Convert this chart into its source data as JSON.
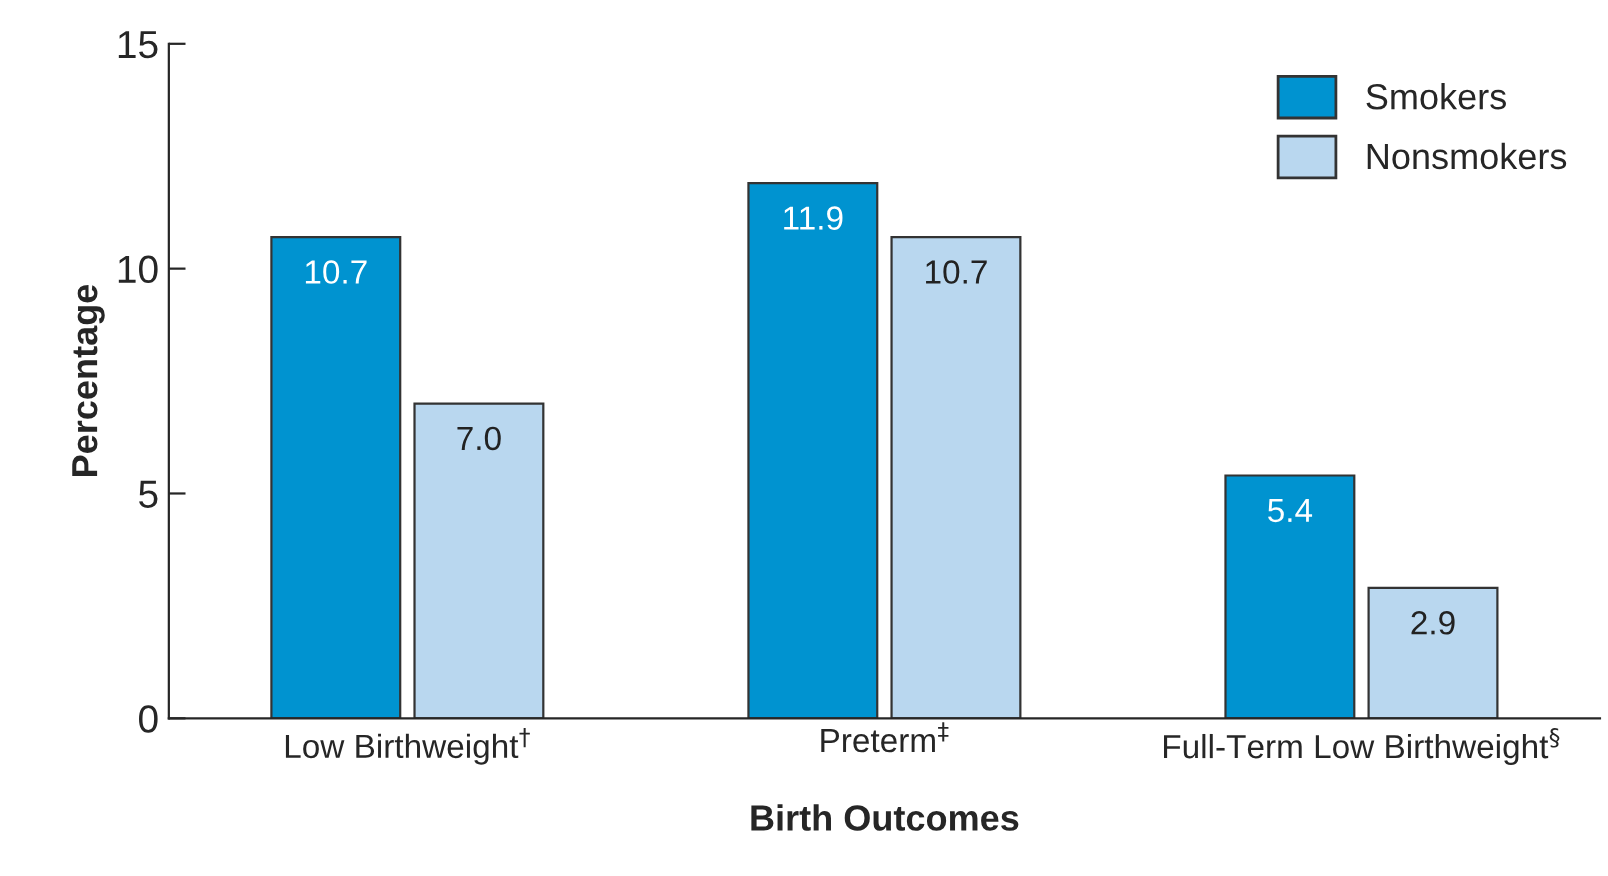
{
  "chart_data": {
    "type": "bar",
    "xlabel": "Birth Outcomes",
    "ylabel": "Percentage",
    "categories": [
      "Low Birthweight$^{†}$",
      "Preterm$^{‡}$",
      "Full-Term Low Birthweight$^{§}$"
    ],
    "series": [
      {
        "name": "Smokers",
        "color": "#0093d0",
        "values": [
          10.7,
          11.9,
          5.4
        ],
        "value_labels": [
          "10.7",
          "11.9",
          "5.4"
        ]
      },
      {
        "name": "Nonsmokers",
        "color": "#b9d7ef",
        "values": [
          7.0,
          10.7,
          2.9
        ],
        "value_labels": [
          "7.0",
          "10.7",
          "2.9"
        ]
      }
    ],
    "ylim": [
      0,
      15
    ],
    "yticks": [
      0,
      5,
      10,
      15
    ],
    "grid": false,
    "legend": "top right"
  }
}
